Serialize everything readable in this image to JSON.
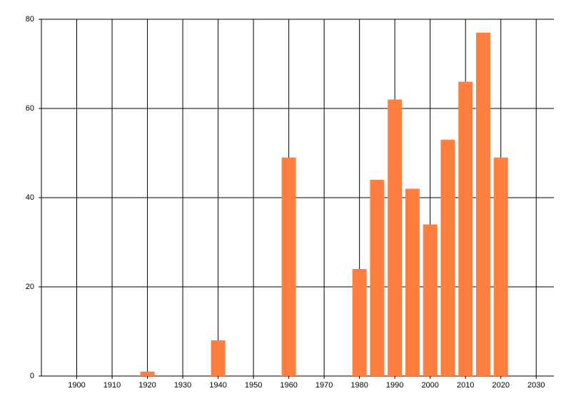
{
  "chart_data": {
    "type": "bar",
    "x": [
      1920,
      1940,
      1960,
      1980,
      1985,
      1990,
      1995,
      2000,
      2005,
      2010,
      2015,
      2020
    ],
    "values": [
      1,
      8,
      49,
      24,
      44,
      62,
      42,
      34,
      53,
      66,
      77,
      49
    ],
    "color": "#ff7f40",
    "xlim": [
      1890,
      2035
    ],
    "xticks": [
      1900,
      1910,
      1920,
      1930,
      1940,
      1950,
      1960,
      1970,
      1980,
      1990,
      2000,
      2010,
      2020,
      2030
    ],
    "ylim": [
      0,
      80
    ],
    "yticks": [
      0,
      20,
      40,
      60,
      80
    ],
    "grid": true
  }
}
